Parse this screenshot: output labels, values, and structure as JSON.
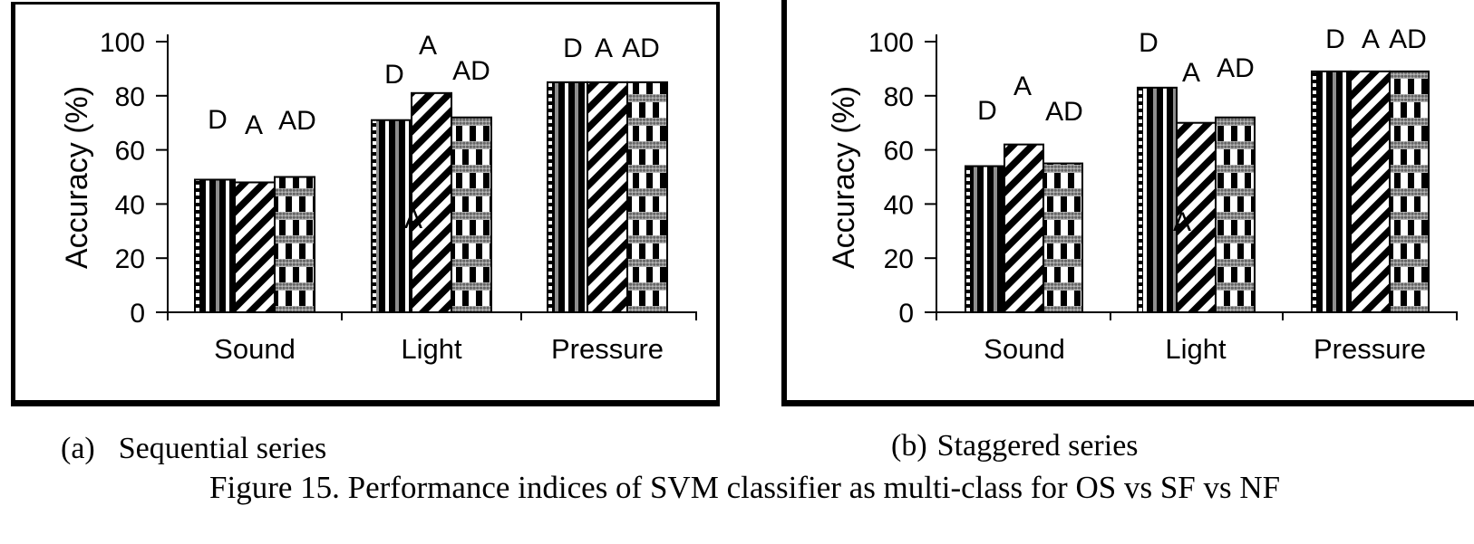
{
  "figure": {
    "subcaption_a": {
      "label": "(a)",
      "title": "Sequential series"
    },
    "subcaption_b": {
      "label": "(b)",
      "title": "Staggered series"
    },
    "caption": "Figure 15. Performance indices of SVM classifier as multi-class for OS vs SF vs NF"
  },
  "colors": {
    "ink": "#000000",
    "paper": "#ffffff",
    "pattern_gray": "#b8b8b8"
  },
  "chart_data": [
    {
      "id": "sequential",
      "panel": "a",
      "type": "bar",
      "title": "Sequential series",
      "xlabel": "",
      "ylabel": "Accuracy (%)",
      "ylim": [
        0,
        100
      ],
      "yticks": [
        0,
        20,
        40,
        60,
        80,
        100
      ],
      "grid": false,
      "legend_position": "series-labels-above-bars",
      "categories": [
        "Sound",
        "Light",
        "Pressure"
      ],
      "series": [
        {
          "name": "D",
          "pattern": "vertical-stripes",
          "values": [
            49,
            71,
            85
          ]
        },
        {
          "name": "A",
          "pattern": "diagonal-stripes",
          "values": [
            48,
            81,
            85
          ]
        },
        {
          "name": "AD",
          "pattern": "checkered-weave",
          "values": [
            50,
            72,
            85
          ]
        }
      ],
      "annotations": [
        {
          "text": "A",
          "near": "Light"
        }
      ]
    },
    {
      "id": "staggered",
      "panel": "b",
      "type": "bar",
      "title": "Staggered series",
      "xlabel": "",
      "ylabel": "Accuracy (%)",
      "ylim": [
        0,
        100
      ],
      "yticks": [
        0,
        20,
        40,
        60,
        80,
        100
      ],
      "grid": false,
      "legend_position": "series-labels-above-bars",
      "categories": [
        "Sound",
        "Light",
        "Pressure"
      ],
      "series": [
        {
          "name": "D",
          "pattern": "vertical-stripes",
          "values": [
            54,
            83,
            89
          ]
        },
        {
          "name": "A",
          "pattern": "diagonal-stripes",
          "values": [
            62,
            70,
            89
          ]
        },
        {
          "name": "AD",
          "pattern": "checkered-weave",
          "values": [
            55,
            72,
            89
          ]
        }
      ],
      "annotations": [
        {
          "text": "A",
          "near": "Light"
        }
      ]
    }
  ]
}
